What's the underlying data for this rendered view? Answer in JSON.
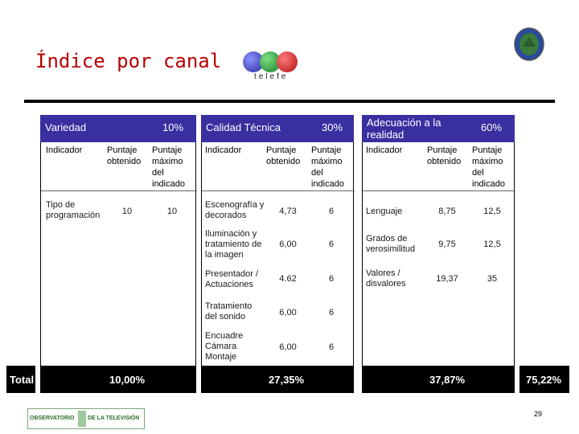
{
  "slide": {
    "title": "Índice por canal",
    "page_number": "29"
  },
  "logo": {
    "text": "telefe",
    "ball_colors": [
      "#3b3fb0",
      "#1e9a3a",
      "#d01818"
    ]
  },
  "footer_logo": {
    "left": "OBSERVATORIO",
    "right": "DE LA TELEVISIÓN"
  },
  "columns": {
    "indicador": "Indicador",
    "obtenido": "Puntaje obtenido",
    "maximo": "Puntaje máximo del indicado"
  },
  "sections": [
    {
      "name": "Variedad",
      "percent": "10%",
      "rows": [
        {
          "indicador": "Tipo de programación",
          "obtenido": "10",
          "maximo": "10"
        }
      ],
      "total": "10,00%"
    },
    {
      "name": "Calidad Técnica",
      "percent": "30%",
      "rows": [
        {
          "indicador": "Escenografía y decorados",
          "obtenido": "4,73",
          "maximo": "6"
        },
        {
          "indicador": "Iluminación y tratamiento de la imagen",
          "obtenido": "6,00",
          "maximo": "6"
        },
        {
          "indicador": "Presentador / Actuaciones",
          "obtenido": "4.62",
          "maximo": "6"
        },
        {
          "indicador": "Tratamiento del sonido",
          "obtenido": "6,00",
          "maximo": "6"
        },
        {
          "indicador": "Encuadre Cámara Montaje",
          "obtenido": "6,00",
          "maximo": "6"
        }
      ],
      "total": "27,35%"
    },
    {
      "name": "Adecuación a la realidad",
      "percent": "60%",
      "rows": [
        {
          "indicador": "Lenguaje",
          "obtenido": "8,75",
          "maximo": "12,5"
        },
        {
          "indicador": "Grados de verosimilitud",
          "obtenido": "9,75",
          "maximo": "12,5"
        },
        {
          "indicador": "Valores / disvalores",
          "obtenido": "19,37",
          "maximo": "35"
        }
      ],
      "total": "37,87%"
    }
  ],
  "total_label": "Total",
  "grand_total": "75,22%",
  "colors": {
    "header_bg": "#3a2fa0",
    "title": "#b80000",
    "footer_green": "#2e8b3a"
  }
}
